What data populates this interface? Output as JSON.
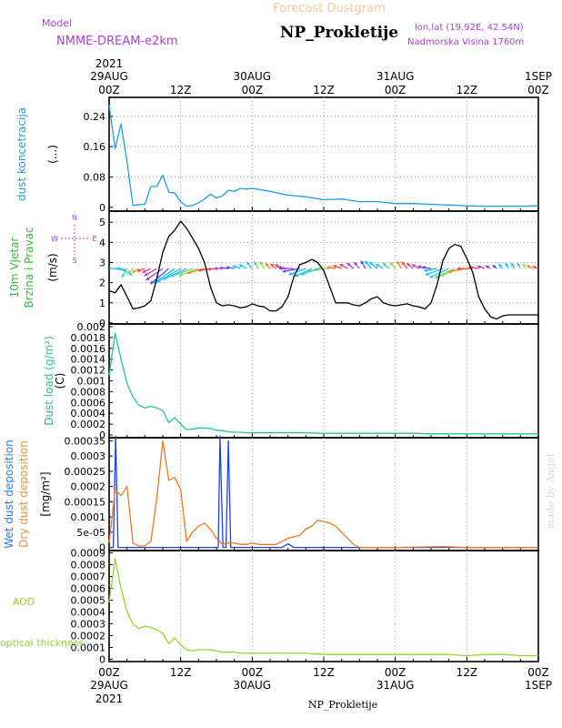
{
  "header": {
    "product": "Forecast Dustgram",
    "model_label": "Model",
    "model_name": "NMME-DREAM-e2km",
    "station": "NP_Prokletije",
    "lonlat": "lon,lat (19.92E, 42.54N)",
    "elevation": "Nadmorska Visina 1760m",
    "credit": "made by Angel",
    "bottom_station": "NP_Prokletije"
  },
  "time_axis": {
    "top_ticks": [
      {
        "hour": 0,
        "l1": "2021",
        "l2": "29AUG",
        "l3": "00Z"
      },
      {
        "hour": 12,
        "l1": "",
        "l2": "",
        "l3": "12Z"
      },
      {
        "hour": 24,
        "l1": "",
        "l2": "30AUG",
        "l3": "00Z"
      },
      {
        "hour": 36,
        "l1": "",
        "l2": "",
        "l3": "12Z"
      },
      {
        "hour": 48,
        "l1": "",
        "l2": "31AUG",
        "l3": "00Z"
      },
      {
        "hour": 60,
        "l1": "",
        "l2": "",
        "l3": "12Z"
      },
      {
        "hour": 72,
        "l1": "",
        "l2": "1SEP",
        "l3": "00Z"
      }
    ],
    "bottom_ticks": [
      {
        "hour": 0,
        "l1": "00Z",
        "l2": "29AUG",
        "l3": "2021"
      },
      {
        "hour": 12,
        "l1": "12Z",
        "l2": "",
        "l3": ""
      },
      {
        "hour": 24,
        "l1": "00Z",
        "l2": "30AUG",
        "l3": ""
      },
      {
        "hour": 36,
        "l1": "12Z",
        "l2": "",
        "l3": ""
      },
      {
        "hour": 48,
        "l1": "00Z",
        "l2": "31AUG",
        "l3": ""
      },
      {
        "hour": 60,
        "l1": "12Z",
        "l2": "",
        "l3": ""
      },
      {
        "hour": 72,
        "l1": "00Z",
        "l2": "1SEP",
        "l3": ""
      }
    ]
  },
  "chart_data": [
    {
      "type": "line",
      "ylabel": "dust koncetracija",
      "unit": "(...)",
      "ylim": [
        -0.01,
        0.29
      ],
      "yticks": [
        "0",
        "0.08",
        "0.16",
        "0.24"
      ],
      "ytick_values": [
        0,
        0.08,
        0.16,
        0.24
      ],
      "grid": true,
      "x_hours": [
        0,
        1,
        2,
        3,
        4,
        5,
        6,
        7,
        8,
        9,
        10,
        11,
        12,
        13,
        14,
        15,
        16,
        17,
        18,
        19,
        20,
        21,
        22,
        23,
        24,
        27,
        30,
        33,
        36,
        39,
        42,
        45,
        48,
        51,
        54,
        57,
        60,
        63,
        66,
        69,
        72
      ],
      "series": [
        {
          "color": "#18a0e8",
          "values": [
            0.27,
            0.155,
            0.22,
            0.12,
            0.005,
            0.007,
            0.008,
            0.055,
            0.055,
            0.085,
            0.04,
            0.038,
            0.015,
            0.003,
            0.005,
            0.012,
            0.022,
            0.035,
            0.025,
            0.03,
            0.045,
            0.042,
            0.05,
            0.048,
            0.05,
            0.042,
            0.032,
            0.028,
            0.02,
            0.022,
            0.015,
            0.015,
            0.01,
            0.01,
            0.008,
            0.006,
            0.004,
            0.003,
            0.003,
            0.003,
            0.004
          ]
        }
      ]
    },
    {
      "type": "line",
      "ylabel": "10m Vjetar",
      "ylabel2": "Brzina i Pravac",
      "unit": "(m/s)",
      "compass": {
        "n": "N",
        "s": "S",
        "w": "W",
        "e": "E"
      },
      "ylim": [
        -0.05,
        5.55
      ],
      "yticks": [
        "0",
        "1",
        "2",
        "3",
        "4",
        "5"
      ],
      "ytick_values": [
        0,
        1,
        2,
        3,
        4,
        5
      ],
      "grid": true,
      "x_hours": [
        0,
        1,
        2,
        3,
        4,
        5,
        6,
        7,
        8,
        9,
        10,
        11,
        12,
        13,
        14,
        15,
        16,
        17,
        18,
        19,
        20,
        21,
        22,
        23,
        24,
        25,
        26,
        27,
        28,
        29,
        30,
        31,
        32,
        33,
        34,
        35,
        36,
        37,
        38,
        39,
        40,
        41,
        42,
        43,
        44,
        45,
        46,
        47,
        48,
        49,
        50,
        51,
        52,
        53,
        54,
        55,
        56,
        57,
        58,
        59,
        60,
        61,
        62,
        63,
        64,
        65,
        66,
        67,
        68,
        69,
        70,
        71,
        72
      ],
      "series": [
        {
          "name": "speed",
          "color": "#000000",
          "values": [
            1.6,
            1.5,
            1.9,
            1.3,
            0.7,
            0.75,
            0.85,
            1.1,
            2.2,
            3.5,
            4.3,
            4.6,
            5.05,
            4.7,
            4.2,
            3.7,
            3.0,
            1.8,
            1.0,
            0.85,
            0.9,
            0.85,
            0.75,
            0.8,
            0.95,
            0.85,
            0.8,
            0.6,
            0.6,
            0.8,
            1.3,
            2.3,
            2.9,
            3.0,
            3.15,
            3.0,
            2.6,
            1.8,
            1.0,
            1.0,
            1.0,
            0.9,
            0.85,
            1.0,
            1.2,
            1.3,
            1.0,
            0.9,
            0.85,
            0.9,
            0.95,
            0.85,
            0.8,
            0.7,
            1.0,
            1.9,
            3.1,
            3.7,
            3.9,
            3.8,
            3.2,
            2.5,
            1.3,
            0.7,
            0.3,
            0.2,
            0.35,
            0.4,
            0.4,
            0.4,
            0.4,
            0.4,
            0.4
          ]
        }
      ],
      "wind_arrows": {
        "baseline": 2.7,
        "hours": [
          0,
          1,
          2,
          3,
          4,
          5,
          6,
          7,
          8,
          9,
          10,
          11,
          12,
          13,
          14,
          15,
          16,
          17,
          18,
          19,
          20,
          21,
          22,
          23,
          24,
          25,
          26,
          27,
          28,
          29,
          30,
          31,
          32,
          33,
          34,
          35,
          36,
          37,
          38,
          39,
          40,
          41,
          42,
          43,
          44,
          45,
          46,
          47,
          48,
          49,
          50,
          51,
          52,
          53,
          54,
          55,
          56,
          57,
          58,
          59,
          60,
          61,
          62,
          63,
          64,
          65,
          66,
          67,
          68,
          69,
          70,
          71,
          72
        ],
        "directions_deg": [
          90,
          100,
          120,
          210,
          225,
          240,
          250,
          245,
          240,
          235,
          230,
          235,
          240,
          245,
          250,
          250,
          255,
          260,
          265,
          270,
          275,
          280,
          290,
          300,
          320,
          330,
          330,
          320,
          310,
          300,
          280,
          270,
          260,
          250,
          245,
          250,
          260,
          270,
          280,
          290,
          300,
          310,
          320,
          330,
          320,
          310,
          300,
          310,
          320,
          330,
          320,
          310,
          300,
          290,
          280,
          260,
          250,
          245,
          245,
          250,
          260,
          270,
          280,
          290,
          300,
          310,
          320,
          330,
          330,
          330,
          320,
          300,
          290
        ],
        "speeds": [
          1.6,
          1.5,
          1.9,
          1.3,
          0.7,
          0.75,
          0.85,
          1.1,
          2.2,
          3.5,
          4.3,
          4.6,
          5.05,
          4.7,
          4.2,
          3.7,
          3.0,
          1.8,
          1.0,
          0.85,
          0.9,
          0.85,
          0.75,
          0.8,
          0.95,
          0.85,
          0.8,
          0.6,
          0.6,
          0.8,
          1.3,
          2.3,
          2.9,
          3.0,
          3.15,
          3.0,
          2.6,
          1.8,
          1.0,
          1.0,
          1.0,
          0.9,
          0.85,
          1.0,
          1.2,
          1.3,
          1.0,
          0.9,
          0.85,
          0.9,
          0.95,
          0.85,
          0.8,
          0.7,
          1.0,
          1.9,
          3.1,
          3.7,
          3.9,
          3.8,
          3.2,
          2.5,
          1.3,
          0.7,
          0.3,
          0.2,
          0.35,
          0.4,
          0.4,
          0.4,
          0.4,
          0.4,
          0.4
        ],
        "colors": [
          "#00bfff",
          "#00c0ff",
          "#20c0f0",
          "#40d0a0",
          "#80e040",
          "#ff8000",
          "#ff4040",
          "#e03070",
          "#c030c0",
          "#8040e0",
          "#6040ff"
        ]
      }
    },
    {
      "type": "line",
      "ylabel": "Dust load (g/m²)",
      "unit": "(C)",
      "ylim": [
        -5e-05,
        0.00205
      ],
      "yticks": [
        "0",
        "0.0002",
        "0.0004",
        "0.0006",
        "0.0008",
        "0.001",
        "0.0012",
        "0.0014",
        "0.0016",
        "0.0018",
        "0.002"
      ],
      "ytick_values": [
        0,
        0.0002,
        0.0004,
        0.0006,
        0.0008,
        0.001,
        0.0012,
        0.0014,
        0.0016,
        0.0018,
        0.002
      ],
      "grid": false,
      "x_hours": [
        0,
        1,
        2,
        3,
        4,
        5,
        6,
        7,
        8,
        9,
        10,
        11,
        12,
        13,
        14,
        15,
        16,
        17,
        18,
        19,
        20,
        21,
        22,
        23,
        24,
        27,
        30,
        33,
        36,
        39,
        42,
        45,
        48,
        51,
        54,
        57,
        60,
        63,
        66,
        69,
        72
      ],
      "series": [
        {
          "color": "#20c890",
          "values": [
            0.0011,
            0.00188,
            0.0014,
            0.00095,
            0.0007,
            0.00055,
            0.0005,
            0.00053,
            0.0005,
            0.00045,
            0.00023,
            0.00032,
            0.0002,
            0.0001,
            0.00011,
            0.00013,
            0.00013,
            0.00012,
            9e-05,
            8e-05,
            6e-05,
            5e-05,
            5e-05,
            4e-05,
            4e-05,
            4e-05,
            4e-05,
            4e-05,
            3e-05,
            3e-05,
            3e-05,
            3e-05,
            3e-05,
            3e-05,
            2e-05,
            2e-05,
            2e-05,
            2e-05,
            2e-05,
            2e-05,
            2e-05
          ]
        }
      ]
    },
    {
      "type": "line",
      "ylabel": "Wet dust deposition",
      "ylabel2": "Dry dust deposition",
      "unit": "[mg/m²]",
      "ylim": [
        -1e-05,
        0.00036
      ],
      "yticks": [
        "0",
        "5e-05",
        "0.0001",
        "0.00015",
        "0.0002",
        "0.00025",
        "0.0003",
        "0.00035"
      ],
      "ytick_values": [
        0,
        5e-05,
        0.0001,
        0.00015,
        0.0002,
        0.00025,
        0.0003,
        0.00035
      ],
      "grid": false,
      "series": [
        {
          "name": "Wet dust deposition",
          "color": "#2040e8",
          "x_hours": [
            0,
            0.7,
            1.1,
            1.5,
            1.9,
            10,
            18.3,
            18.6,
            19.1,
            19.6,
            20.0,
            20.4,
            29,
            30,
            31,
            72
          ],
          "values": [
            0,
            0,
            0.000365,
            0,
            0,
            0,
            0,
            0.000365,
            0,
            0,
            0.00035,
            0,
            0,
            1.2e-05,
            0,
            0
          ]
        },
        {
          "name": "Dry dust deposition",
          "color": "#f07820",
          "x_hours": [
            0,
            1,
            2,
            3,
            4,
            5,
            6,
            7,
            8,
            9,
            10,
            11,
            12,
            13,
            14,
            15,
            16,
            17,
            18,
            19,
            20,
            21,
            22,
            23,
            24,
            25,
            26,
            27,
            28,
            29,
            30,
            31,
            32,
            33,
            34,
            35,
            36,
            37,
            38,
            39,
            40,
            41,
            42,
            43,
            44,
            45,
            46,
            47,
            48,
            56,
            60,
            66,
            72
          ],
          "values": [
            1.5e-05,
            0.00019,
            0.00017,
            0.0002,
            1.5e-05,
            5e-06,
            5e-06,
            2e-05,
            0.00016,
            0.00035,
            0.00022,
            0.00023,
            0.00019,
            2e-05,
            5e-05,
            7e-05,
            8e-05,
            6e-05,
            3e-05,
            1e-05,
            1.5e-05,
            1.5e-05,
            1e-05,
            1e-05,
            1.5e-05,
            1e-05,
            1e-05,
            1e-05,
            1e-05,
            2e-05,
            3e-05,
            3.5e-05,
            4e-05,
            6e-05,
            7e-05,
            9e-05,
            8.5e-05,
            8e-05,
            7e-05,
            5e-05,
            3e-05,
            1e-05,
            0,
            0,
            0,
            0,
            0,
            0,
            0,
            3e-06,
            0,
            0,
            0
          ]
        }
      ]
    },
    {
      "type": "line",
      "ylabel": "AOD",
      "ylabel2": "optical thickness",
      "ylim": [
        -2e-05,
        0.00092
      ],
      "yticks": [
        "0",
        "0.0001",
        "0.0002",
        "0.0003",
        "0.0004",
        "0.0005",
        "0.0006",
        "0.0007",
        "0.0008",
        "0.0009"
      ],
      "ytick_values": [
        0,
        0.0001,
        0.0002,
        0.0003,
        0.0004,
        0.0005,
        0.0006,
        0.0007,
        0.0008,
        0.0009
      ],
      "grid": false,
      "x_hours": [
        0,
        1,
        2,
        3,
        4,
        5,
        6,
        7,
        8,
        9,
        10,
        11,
        12,
        13,
        14,
        15,
        16,
        17,
        18,
        19,
        20,
        21,
        22,
        23,
        24,
        27,
        30,
        33,
        36,
        39,
        42,
        45,
        48,
        51,
        54,
        57,
        60,
        63,
        66,
        69,
        72
      ],
      "series": [
        {
          "color": "#90d830",
          "values": [
            0.00048,
            0.00085,
            0.0006,
            0.0004,
            0.0003,
            0.00026,
            0.00028,
            0.00027,
            0.00025,
            0.00022,
            0.00013,
            0.00018,
            0.00012,
            8e-05,
            7e-05,
            8e-05,
            8e-05,
            8e-05,
            7e-05,
            6e-05,
            6e-05,
            6e-05,
            5e-05,
            5e-05,
            5e-05,
            5e-05,
            5e-05,
            5e-05,
            4e-05,
            4e-05,
            4e-05,
            4e-05,
            4e-05,
            4e-05,
            4e-05,
            4e-05,
            3e-05,
            4e-05,
            4e-05,
            3e-05,
            3e-05
          ]
        }
      ]
    }
  ]
}
